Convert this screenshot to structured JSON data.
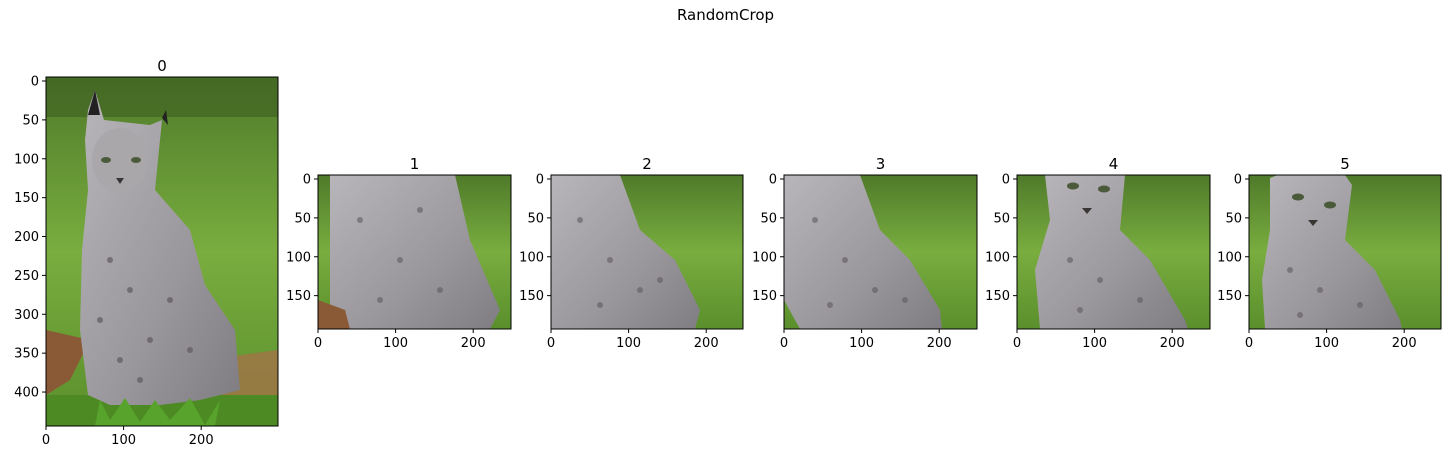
{
  "figure": {
    "suptitle": "RandomCrop",
    "panels": [
      {
        "title": "0",
        "x_ticks": [
          "0",
          "100",
          "200"
        ],
        "y_ticks": [
          "0",
          "50",
          "100",
          "150",
          "200",
          "250",
          "300",
          "350",
          "400"
        ],
        "content": "full image of a lynx sitting on grass"
      },
      {
        "title": "1",
        "x_ticks": [
          "0",
          "100",
          "200"
        ],
        "y_ticks": [
          "0",
          "50",
          "100",
          "150"
        ],
        "content": "crop of lynx legs and body"
      },
      {
        "title": "2",
        "x_ticks": [
          "0",
          "100",
          "200"
        ],
        "y_ticks": [
          "0",
          "50",
          "100",
          "150"
        ],
        "content": "crop of lynx body"
      },
      {
        "title": "3",
        "x_ticks": [
          "0",
          "100",
          "200"
        ],
        "y_ticks": [
          "0",
          "50",
          "100",
          "150"
        ],
        "content": "crop of lynx body"
      },
      {
        "title": "4",
        "x_ticks": [
          "0",
          "100",
          "200"
        ],
        "y_ticks": [
          "0",
          "50",
          "100",
          "150"
        ],
        "content": "crop of lynx face and chest"
      },
      {
        "title": "5",
        "x_ticks": [
          "0",
          "100",
          "200"
        ],
        "y_ticks": [
          "0",
          "50",
          "100",
          "150"
        ],
        "content": "crop of lynx face and chest"
      }
    ]
  },
  "colors": {
    "grass": "#6fa63a",
    "grass_dark": "#3f6e1f",
    "fur": "#a5a3a6",
    "fur_dark": "#6e6a70",
    "soil": "#8a5a36"
  }
}
